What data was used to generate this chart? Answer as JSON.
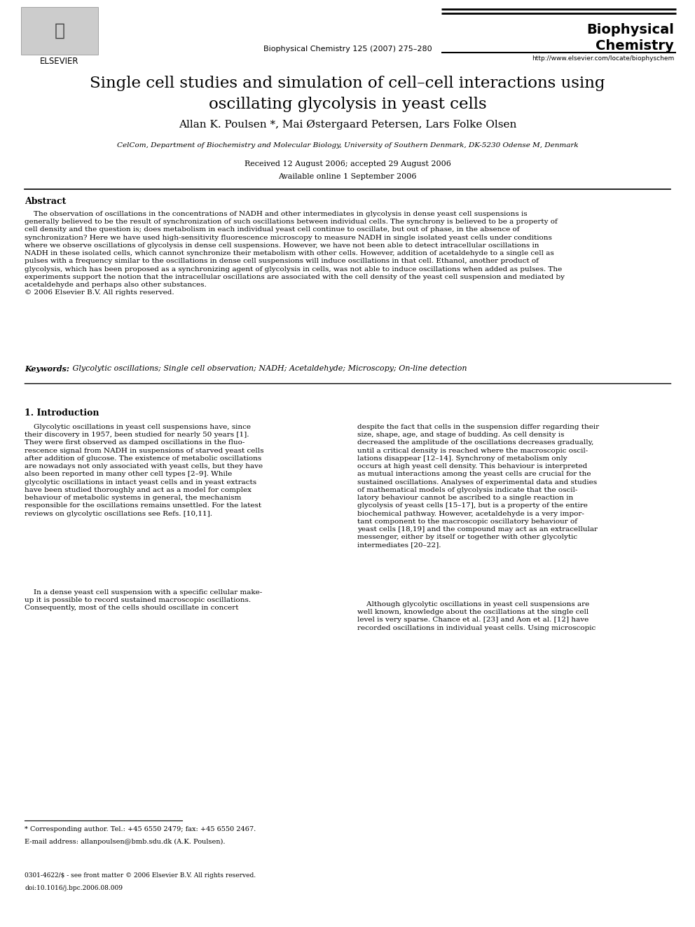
{
  "journal_name": "Biophysical\nChemistry",
  "journal_ref": "Biophysical Chemistry 125 (2007) 275–280",
  "journal_url": "http://www.elsevier.com/locate/biophyschem",
  "title": "Single cell studies and simulation of cell–cell interactions using\noscillating glycolysis in yeast cells",
  "authors": "Allan K. Poulsen *, Mai Østergaard Petersen, Lars Folke Olsen",
  "affiliation": "CelCom, Department of Biochemistry and Molecular Biology, University of Southern Denmark, DK-5230 Odense M, Denmark",
  "received": "Received 12 August 2006; accepted 29 August 2006",
  "available": "Available online 1 September 2006",
  "abstract_title": "Abstract",
  "abstract_text": "    The observation of oscillations in the concentrations of NADH and other intermediates in glycolysis in dense yeast cell suspensions is\ngenerally believed to be the result of synchronization of such oscillations between individual cells. The synchrony is believed to be a property of\ncell density and the question is; does metabolism in each individual yeast cell continue to oscillate, but out of phase, in the absence of\nsynchronization? Here we have used high-sensitivity fluorescence microscopy to measure NADH in single isolated yeast cells under conditions\nwhere we observe oscillations of glycolysis in dense cell suspensions. However, we have not been able to detect intracellular oscillations in\nNADH in these isolated cells, which cannot synchronize their metabolism with other cells. However, addition of acetaldehyde to a single cell as\npulses with a frequency similar to the oscillations in dense cell suspensions will induce oscillations in that cell. Ethanol, another product of\nglycolysis, which has been proposed as a synchronizing agent of glycolysis in cells, was not able to induce oscillations when added as pulses. The\nexperiments support the notion that the intracellular oscillations are associated with the cell density of the yeast cell suspension and mediated by\nacetaldehyde and perhaps also other substances.\n© 2006 Elsevier B.V. All rights reserved.",
  "keywords_label": "Keywords:",
  "keywords_text": " Glycolytic oscillations; Single cell observation; NADH; Acetaldehyde; Microscopy; On-line detection",
  "section_title": "1. Introduction",
  "intro_col1_para1": "    Glycolytic oscillations in yeast cell suspensions have, since\ntheir discovery in 1957, been studied for nearly 50 years [1].\nThey were first observed as damped oscillations in the fluo-\nrescence signal from NADH in suspensions of starved yeast cells\nafter addition of glucose. The existence of metabolic oscillations\nare nowadays not only associated with yeast cells, but they have\nalso been reported in many other cell types [2–9]. While\nglycolytic oscillations in intact yeast cells and in yeast extracts\nhave been studied thoroughly and act as a model for complex\nbehaviour of metabolic systems in general, the mechanism\nresponsible for the oscillations remains unsettled. For the latest\nreviews on glycolytic oscillations see Refs. [10,11].",
  "intro_col1_para2": "    In a dense yeast cell suspension with a specific cellular make-\nup it is possible to record sustained macroscopic oscillations.\nConsequently, most of the cells should oscillate in concert",
  "intro_col2_para1": "despite the fact that cells in the suspension differ regarding their\nsize, shape, age, and stage of budding. As cell density is\ndecreased the amplitude of the oscillations decreases gradually,\nuntil a critical density is reached where the macroscopic oscil-\nlations disappear [12–14]. Synchrony of metabolism only\noccurs at high yeast cell density. This behaviour is interpreted\nas mutual interactions among the yeast cells are crucial for the\nsustained oscillations. Analyses of experimental data and studies\nof mathematical models of glycolysis indicate that the oscil-\nlatory behaviour cannot be ascribed to a single reaction in\nglycolysis of yeast cells [15–17], but is a property of the entire\nbiochemical pathway. However, acetaldehyde is a very impor-\ntant component to the macroscopic oscillatory behaviour of\nyeast cells [18,19] and the compound may act as an extracellular\nmessenger, either by itself or together with other glycolytic\nintermediates [20–22].",
  "intro_col2_para2": "    Although glycolytic oscillations in yeast cell suspensions are\nwell known, knowledge about the oscillations at the single cell\nlevel is very sparse. Chance et al. [23] and Aon et al. [12] have\nrecorded oscillations in individual yeast cells. Using microscopic",
  "footnote1": "* Corresponding author. Tel.: +45 6550 2479; fax: +45 6550 2467.",
  "footnote2": "E-mail address: allanpoulsen@bmb.sdu.dk (A.K. Poulsen).",
  "footer1": "0301-4622/$ - see front matter © 2006 Elsevier B.V. All rights reserved.",
  "footer2": "doi:10.1016/j.bpc.2006.08.009",
  "bg_color": "#ffffff",
  "text_color": "#000000"
}
